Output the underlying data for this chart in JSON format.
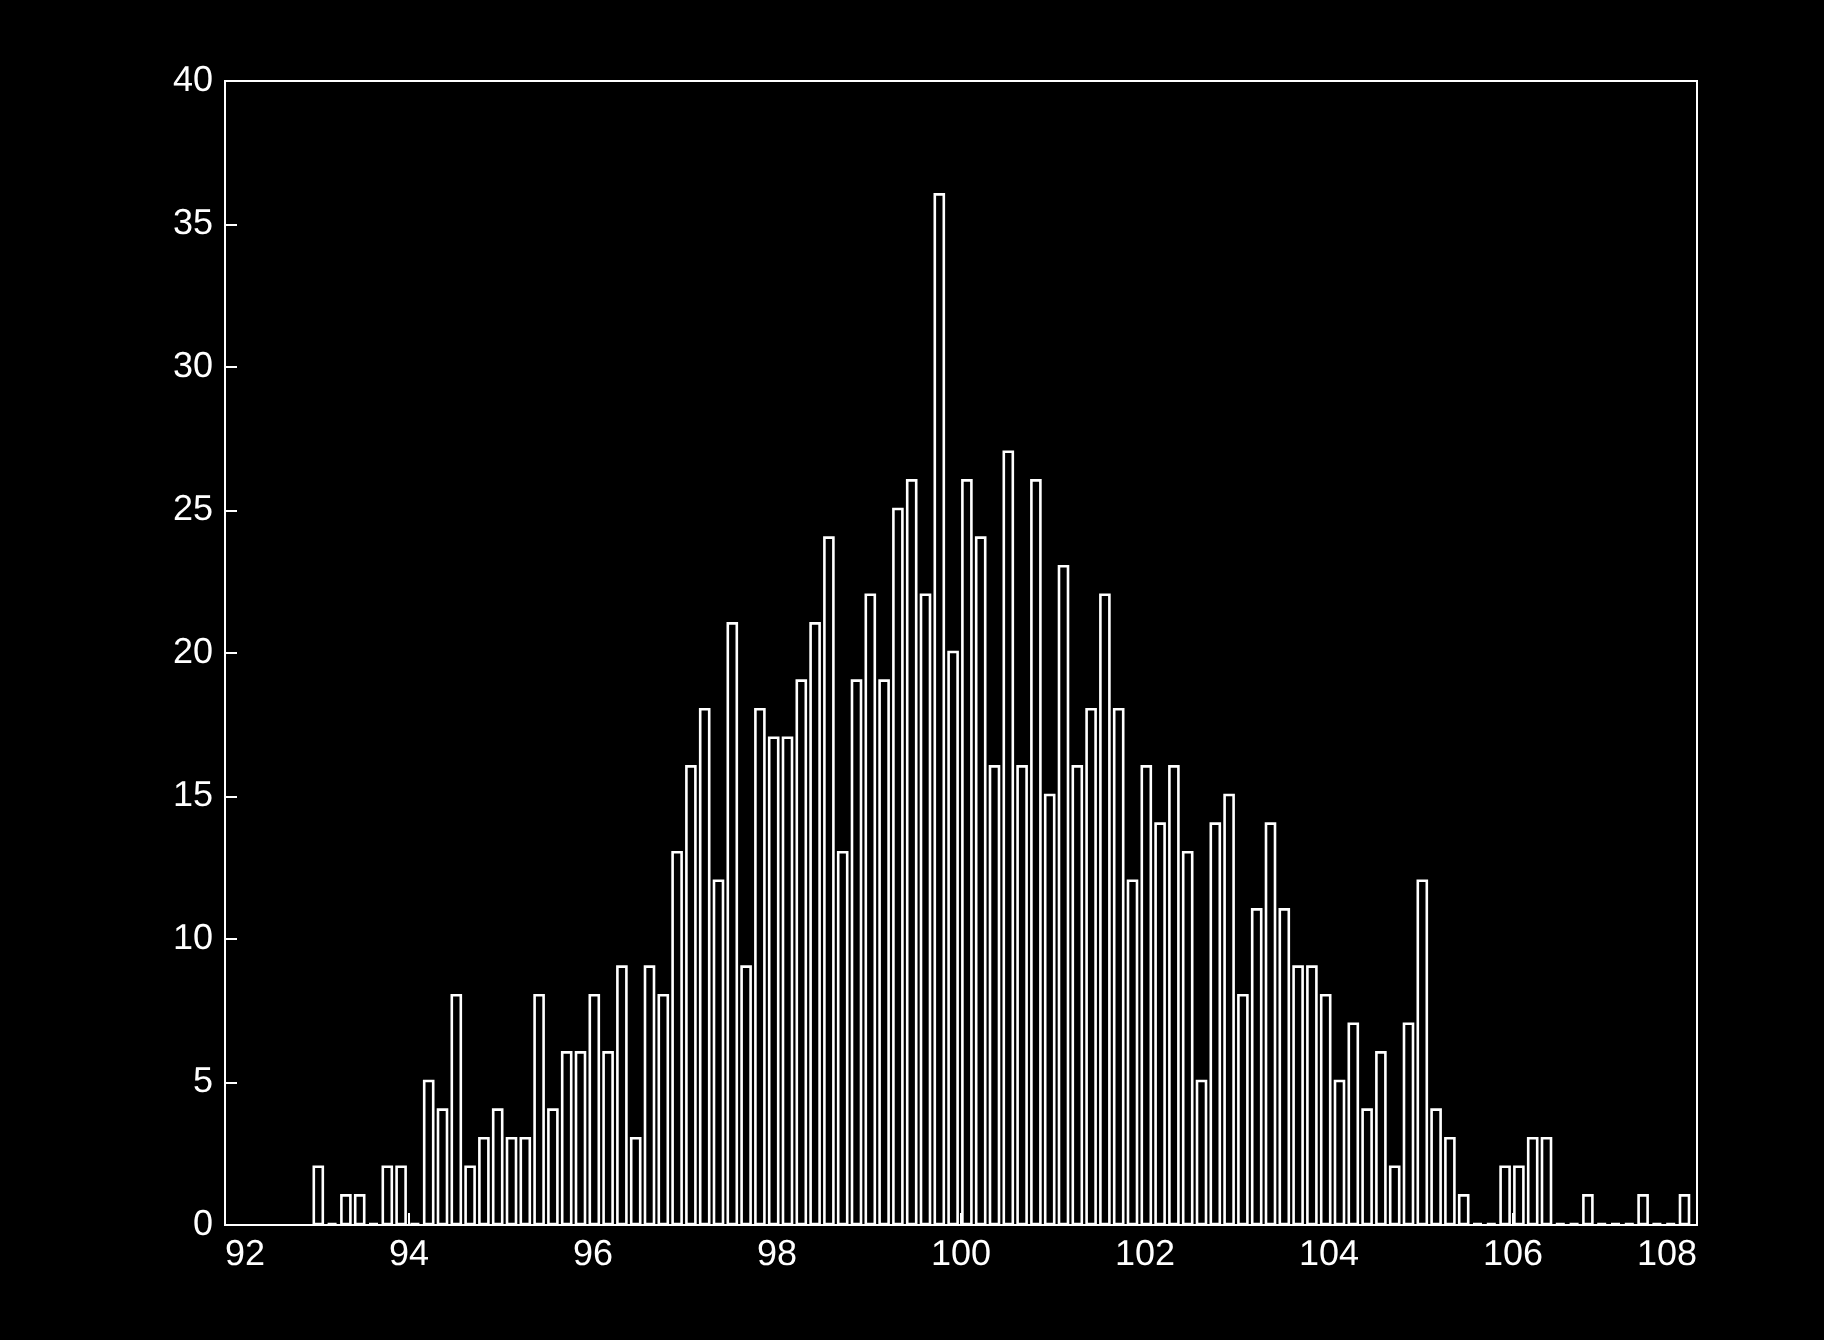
{
  "chart_data": {
    "type": "histogram",
    "bins": [
      92.95,
      93.1,
      93.25,
      93.4,
      93.55,
      93.7,
      93.85,
      94,
      94.15,
      94.3,
      94.45,
      94.6,
      94.75,
      94.9,
      95.05,
      95.2,
      95.35,
      95.5,
      95.65,
      95.8,
      95.95,
      96.1,
      96.25,
      96.4,
      96.55,
      96.7,
      96.85,
      97,
      97.15,
      97.3,
      97.45,
      97.6,
      97.75,
      97.9,
      98.05,
      98.2,
      98.35,
      98.5,
      98.65,
      98.8,
      98.95,
      99.1,
      99.25,
      99.4,
      99.55,
      99.7,
      99.85,
      100,
      100.15,
      100.3,
      100.45,
      100.6,
      100.75,
      100.9,
      101.05,
      101.2,
      101.35,
      101.5,
      101.65,
      101.8,
      101.95,
      102.1,
      102.25,
      102.4,
      102.55,
      102.7,
      102.85,
      103,
      103.15,
      103.3,
      103.45,
      103.6,
      103.75,
      103.9,
      104.05,
      104.2,
      104.35,
      104.5,
      104.65,
      104.8,
      104.95,
      105.1,
      105.25,
      105.4,
      105.55,
      105.7,
      105.85,
      106,
      106.15,
      106.3,
      106.45,
      106.6,
      106.75,
      106.9,
      107.05,
      107.2,
      107.35,
      107.5,
      107.65,
      107.8,
      107.95
    ],
    "values": [
      2,
      0,
      1,
      1,
      0,
      2,
      2,
      0,
      5,
      4,
      8,
      2,
      3,
      4,
      3,
      3,
      8,
      4,
      6,
      6,
      8,
      6,
      9,
      3,
      9,
      8,
      13,
      16,
      18,
      12,
      21,
      9,
      18,
      17,
      17,
      19,
      21,
      24,
      13,
      19,
      22,
      19,
      25,
      26,
      22,
      36,
      20,
      26,
      24,
      16,
      27,
      16,
      26,
      15,
      23,
      16,
      18,
      22,
      18,
      12,
      16,
      14,
      16,
      13,
      5,
      14,
      15,
      8,
      11,
      14,
      11,
      9,
      9,
      8,
      5,
      7,
      4,
      6,
      2,
      7,
      12,
      4,
      3,
      1,
      0,
      0,
      2,
      2,
      3,
      3,
      0,
      0,
      1,
      0,
      0,
      0,
      1,
      0,
      0,
      1
    ],
    "color": "#ffffff",
    "xlim": [
      92,
      108
    ],
    "xticks": [
      92,
      94,
      96,
      98,
      100,
      102,
      104,
      106,
      108
    ],
    "ylim": [
      0,
      40
    ],
    "yticks": [
      0,
      5,
      10,
      15,
      20,
      25,
      30,
      35,
      40
    ],
    "grid": false
  }
}
